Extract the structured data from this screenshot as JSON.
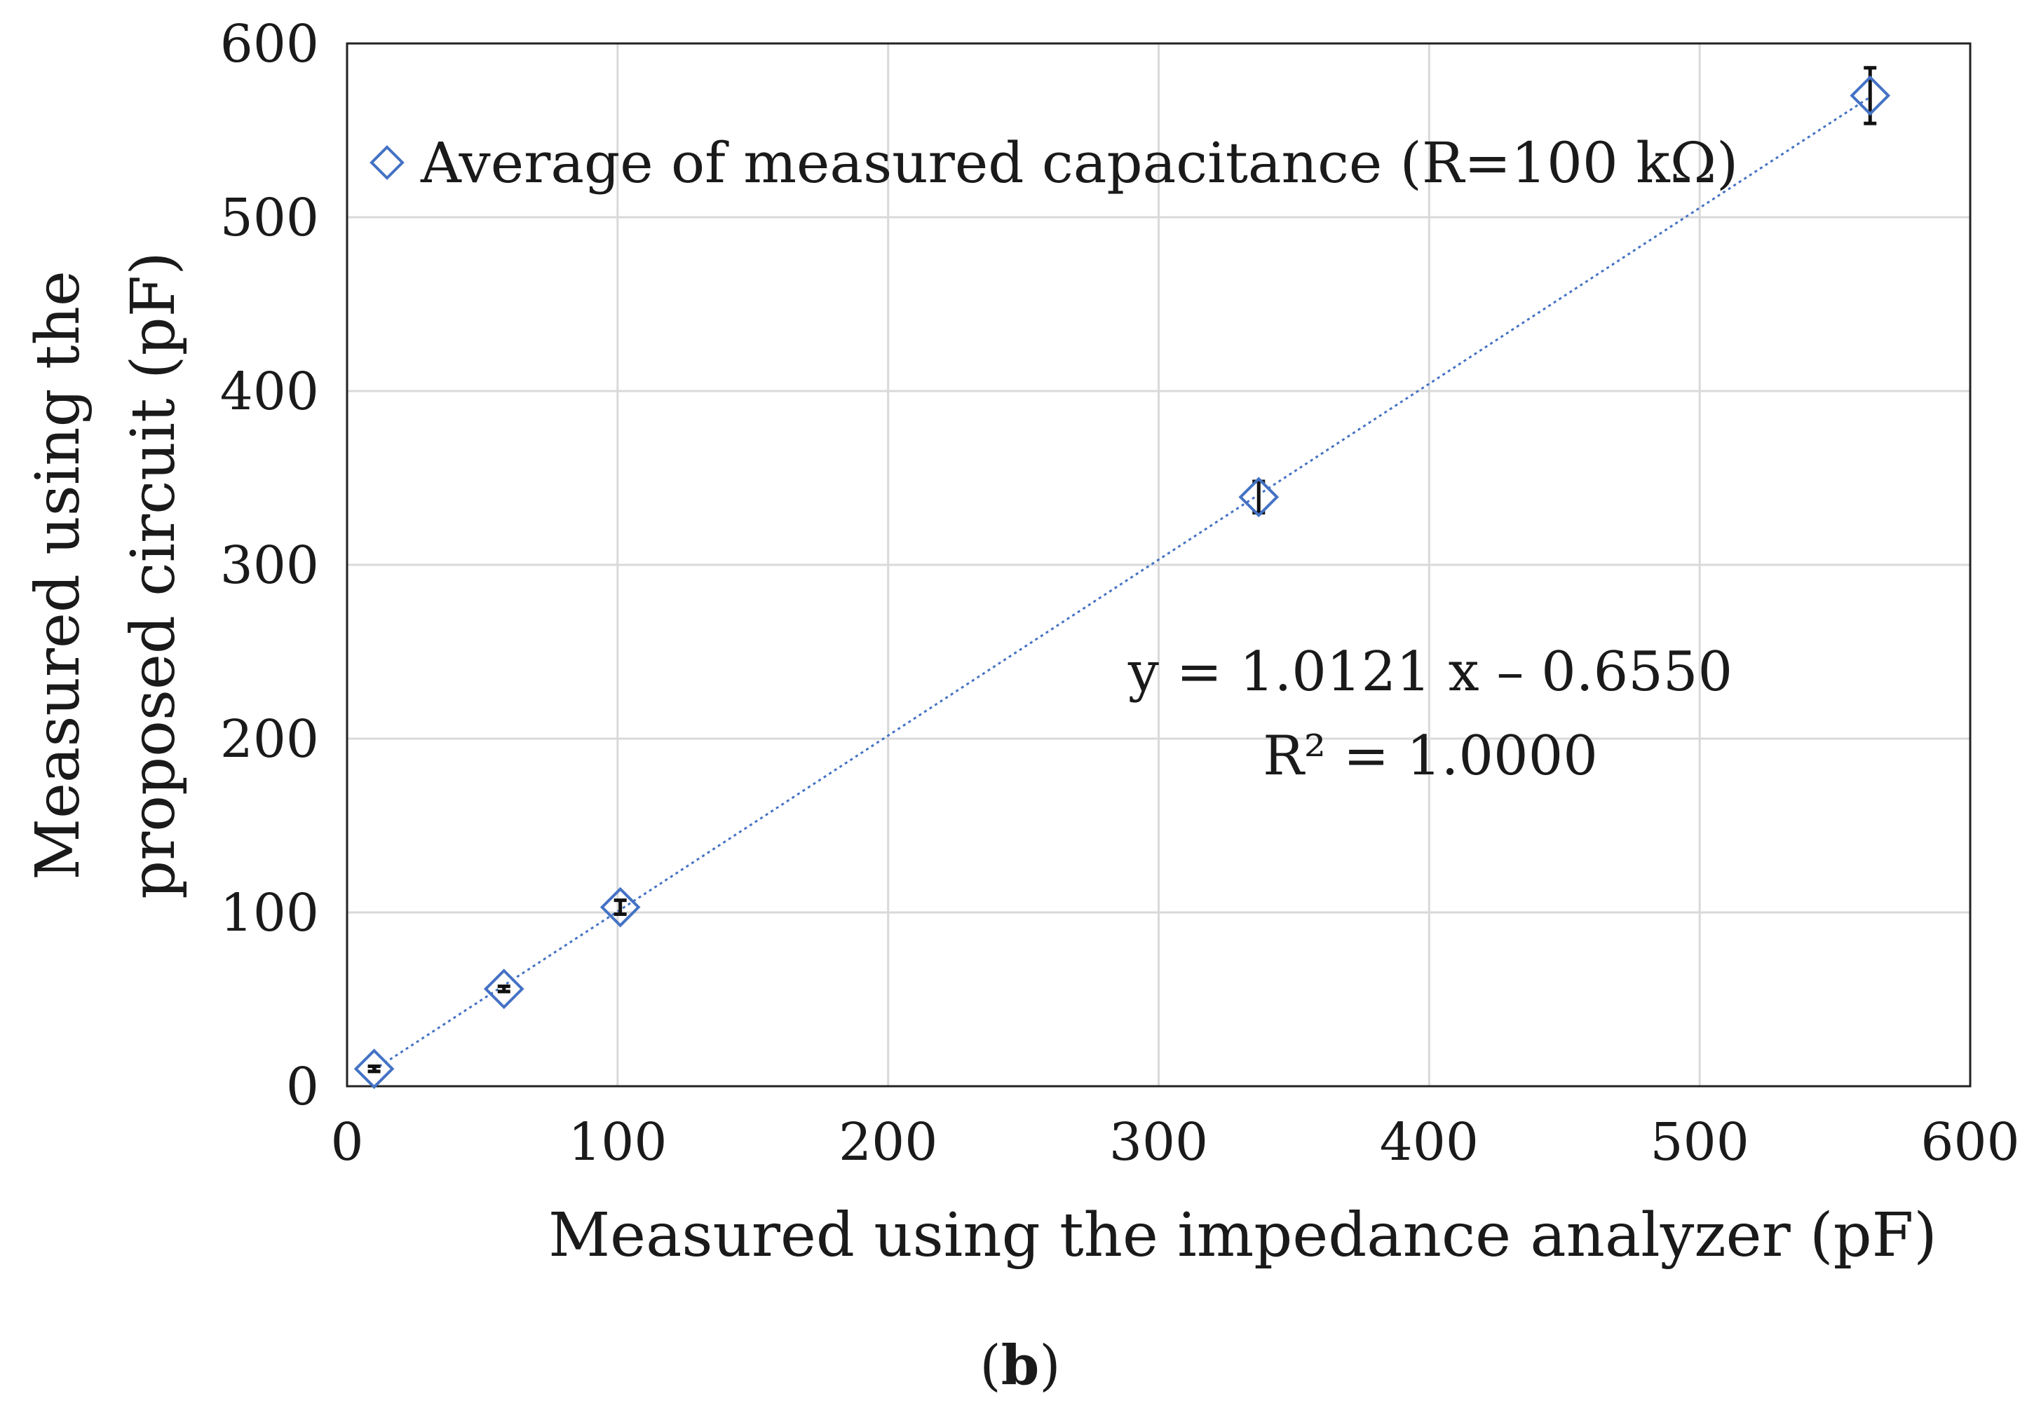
{
  "chart_data": {
    "type": "scatter",
    "title": "",
    "xlabel": "Measured using the impedance analyzer (pF)",
    "ylabel_lines": [
      "Measured using the",
      "proposed circuit (pF)"
    ],
    "xlim": [
      0,
      600
    ],
    "ylim": [
      0,
      600
    ],
    "xticks": [
      "0",
      "100",
      "200",
      "300",
      "400",
      "500",
      "600"
    ],
    "yticks": [
      "0",
      "100",
      "200",
      "300",
      "400",
      "500",
      "600"
    ],
    "grid": true,
    "legend_position": "top-left",
    "series": [
      {
        "name": "Average of measured capacitance (R=100 kΩ)",
        "marker": "diamond-open",
        "color": "#4472c4",
        "x": [
          10,
          58,
          101,
          337,
          563
        ],
        "y": [
          10,
          56,
          103,
          339,
          570
        ],
        "y_error": [
          1.5,
          1.5,
          4,
          9,
          16
        ]
      }
    ],
    "trendline": {
      "slope": 1.0121,
      "intercept": -0.655,
      "x_range": [
        10,
        563
      ],
      "style": "dotted",
      "color": "#4472c4",
      "equation": "y = 1.0121 x – 0.6550",
      "r_squared": "R² = 1.0000"
    },
    "panel_label_open": "(",
    "panel_label_letter": "b",
    "panel_label_close": ")"
  }
}
